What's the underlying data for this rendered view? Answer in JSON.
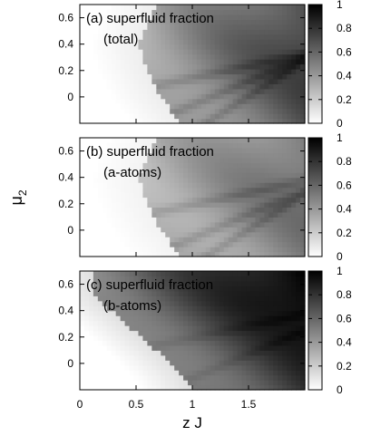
{
  "figure": {
    "shared_xlabel": "z J",
    "shared_ylabel": "μ",
    "shared_ylabel_sub": "2"
  },
  "chart_data": [
    {
      "type": "heatmap",
      "title": "(a) superfluid fraction",
      "subtitle": "(total)",
      "xlim": [
        0,
        2.0
      ],
      "ylim": [
        -0.2,
        0.7
      ],
      "xticks": [],
      "yticks": [
        0,
        0.2,
        0.4,
        0.6
      ],
      "ytick_labels": [
        "0",
        "0.2",
        "0.4",
        "0.6"
      ],
      "colorbar": {
        "range": [
          0,
          1
        ],
        "ticks": [
          0,
          0.2,
          0.4,
          0.6,
          0.8,
          1
        ],
        "tick_labels": [
          "0",
          "0.2",
          "0.4",
          "0.6",
          "0.8",
          "1"
        ],
        "low_color": "#ffffff",
        "high_color": "#000000"
      },
      "boundary_zJ": [
        [
          0.7,
          0.7
        ],
        [
          0.62,
          0.6
        ],
        [
          0.53,
          0.4
        ],
        [
          0.6,
          0.2
        ],
        [
          0.72,
          0.0
        ],
        [
          0.9,
          -0.2
        ]
      ],
      "field": {
        "base": 0.35,
        "gain": 0.28,
        "band_strength": 0.1,
        "band_centers": [
          0.2,
          0.05,
          -0.1
        ],
        "halo_value": 0.07
      }
    },
    {
      "type": "heatmap",
      "title": "(b) superfluid fraction",
      "subtitle": "(a-atoms)",
      "xlim": [
        0,
        2.0
      ],
      "ylim": [
        -0.2,
        0.7
      ],
      "xticks": [],
      "yticks": [
        0,
        0.2,
        0.4,
        0.6
      ],
      "ytick_labels": [
        "0",
        "0.2",
        "0.4",
        "0.6"
      ],
      "colorbar": {
        "range": [
          0,
          1
        ],
        "ticks": [
          0,
          0.2,
          0.4,
          0.6,
          0.8,
          1
        ],
        "tick_labels": [
          "0",
          "0.2",
          "0.4",
          "0.6",
          "0.8",
          "1"
        ],
        "low_color": "#ffffff",
        "high_color": "#000000"
      },
      "boundary_zJ": [
        [
          0.7,
          0.7
        ],
        [
          0.62,
          0.6
        ],
        [
          0.53,
          0.4
        ],
        [
          0.6,
          0.2
        ],
        [
          0.72,
          0.0
        ],
        [
          0.9,
          -0.2
        ]
      ],
      "field": {
        "base": 0.3,
        "gain": 0.18,
        "band_strength": 0.1,
        "band_centers": [
          0.25,
          0.05,
          -0.1
        ],
        "halo_value": 0.05
      }
    },
    {
      "type": "heatmap",
      "title": "(c) superfluid fraction",
      "subtitle": "(b-atoms)",
      "xlim": [
        0,
        2.0
      ],
      "ylim": [
        -0.2,
        0.7
      ],
      "xticks": [
        0,
        0.5,
        1,
        1.5
      ],
      "xtick_labels": [
        "0",
        "0.5",
        "1",
        "1.5"
      ],
      "yticks": [
        0,
        0.2,
        0.4,
        0.6
      ],
      "ytick_labels": [
        "0",
        "0.2",
        "0.4",
        "0.6"
      ],
      "colorbar": {
        "range": [
          0,
          1
        ],
        "ticks": [
          0,
          0.2,
          0.4,
          0.6,
          0.8,
          1
        ],
        "tick_labels": [
          "0",
          "0.2",
          "0.4",
          "0.6",
          "0.8",
          "1"
        ],
        "low_color": "#ffffff",
        "high_color": "#000000"
      },
      "boundary_zJ": [
        [
          0.1,
          0.7
        ],
        [
          0.12,
          0.55
        ],
        [
          0.2,
          0.45
        ],
        [
          0.35,
          0.35
        ],
        [
          0.55,
          0.2
        ],
        [
          0.75,
          0.05
        ],
        [
          0.92,
          -0.1
        ],
        [
          1.0,
          -0.2
        ]
      ],
      "field": {
        "base": 0.5,
        "gain": 0.28,
        "band_strength": 0.05,
        "band_centers": [
          0.25,
          0.0
        ],
        "halo_value": 0.12
      }
    }
  ]
}
